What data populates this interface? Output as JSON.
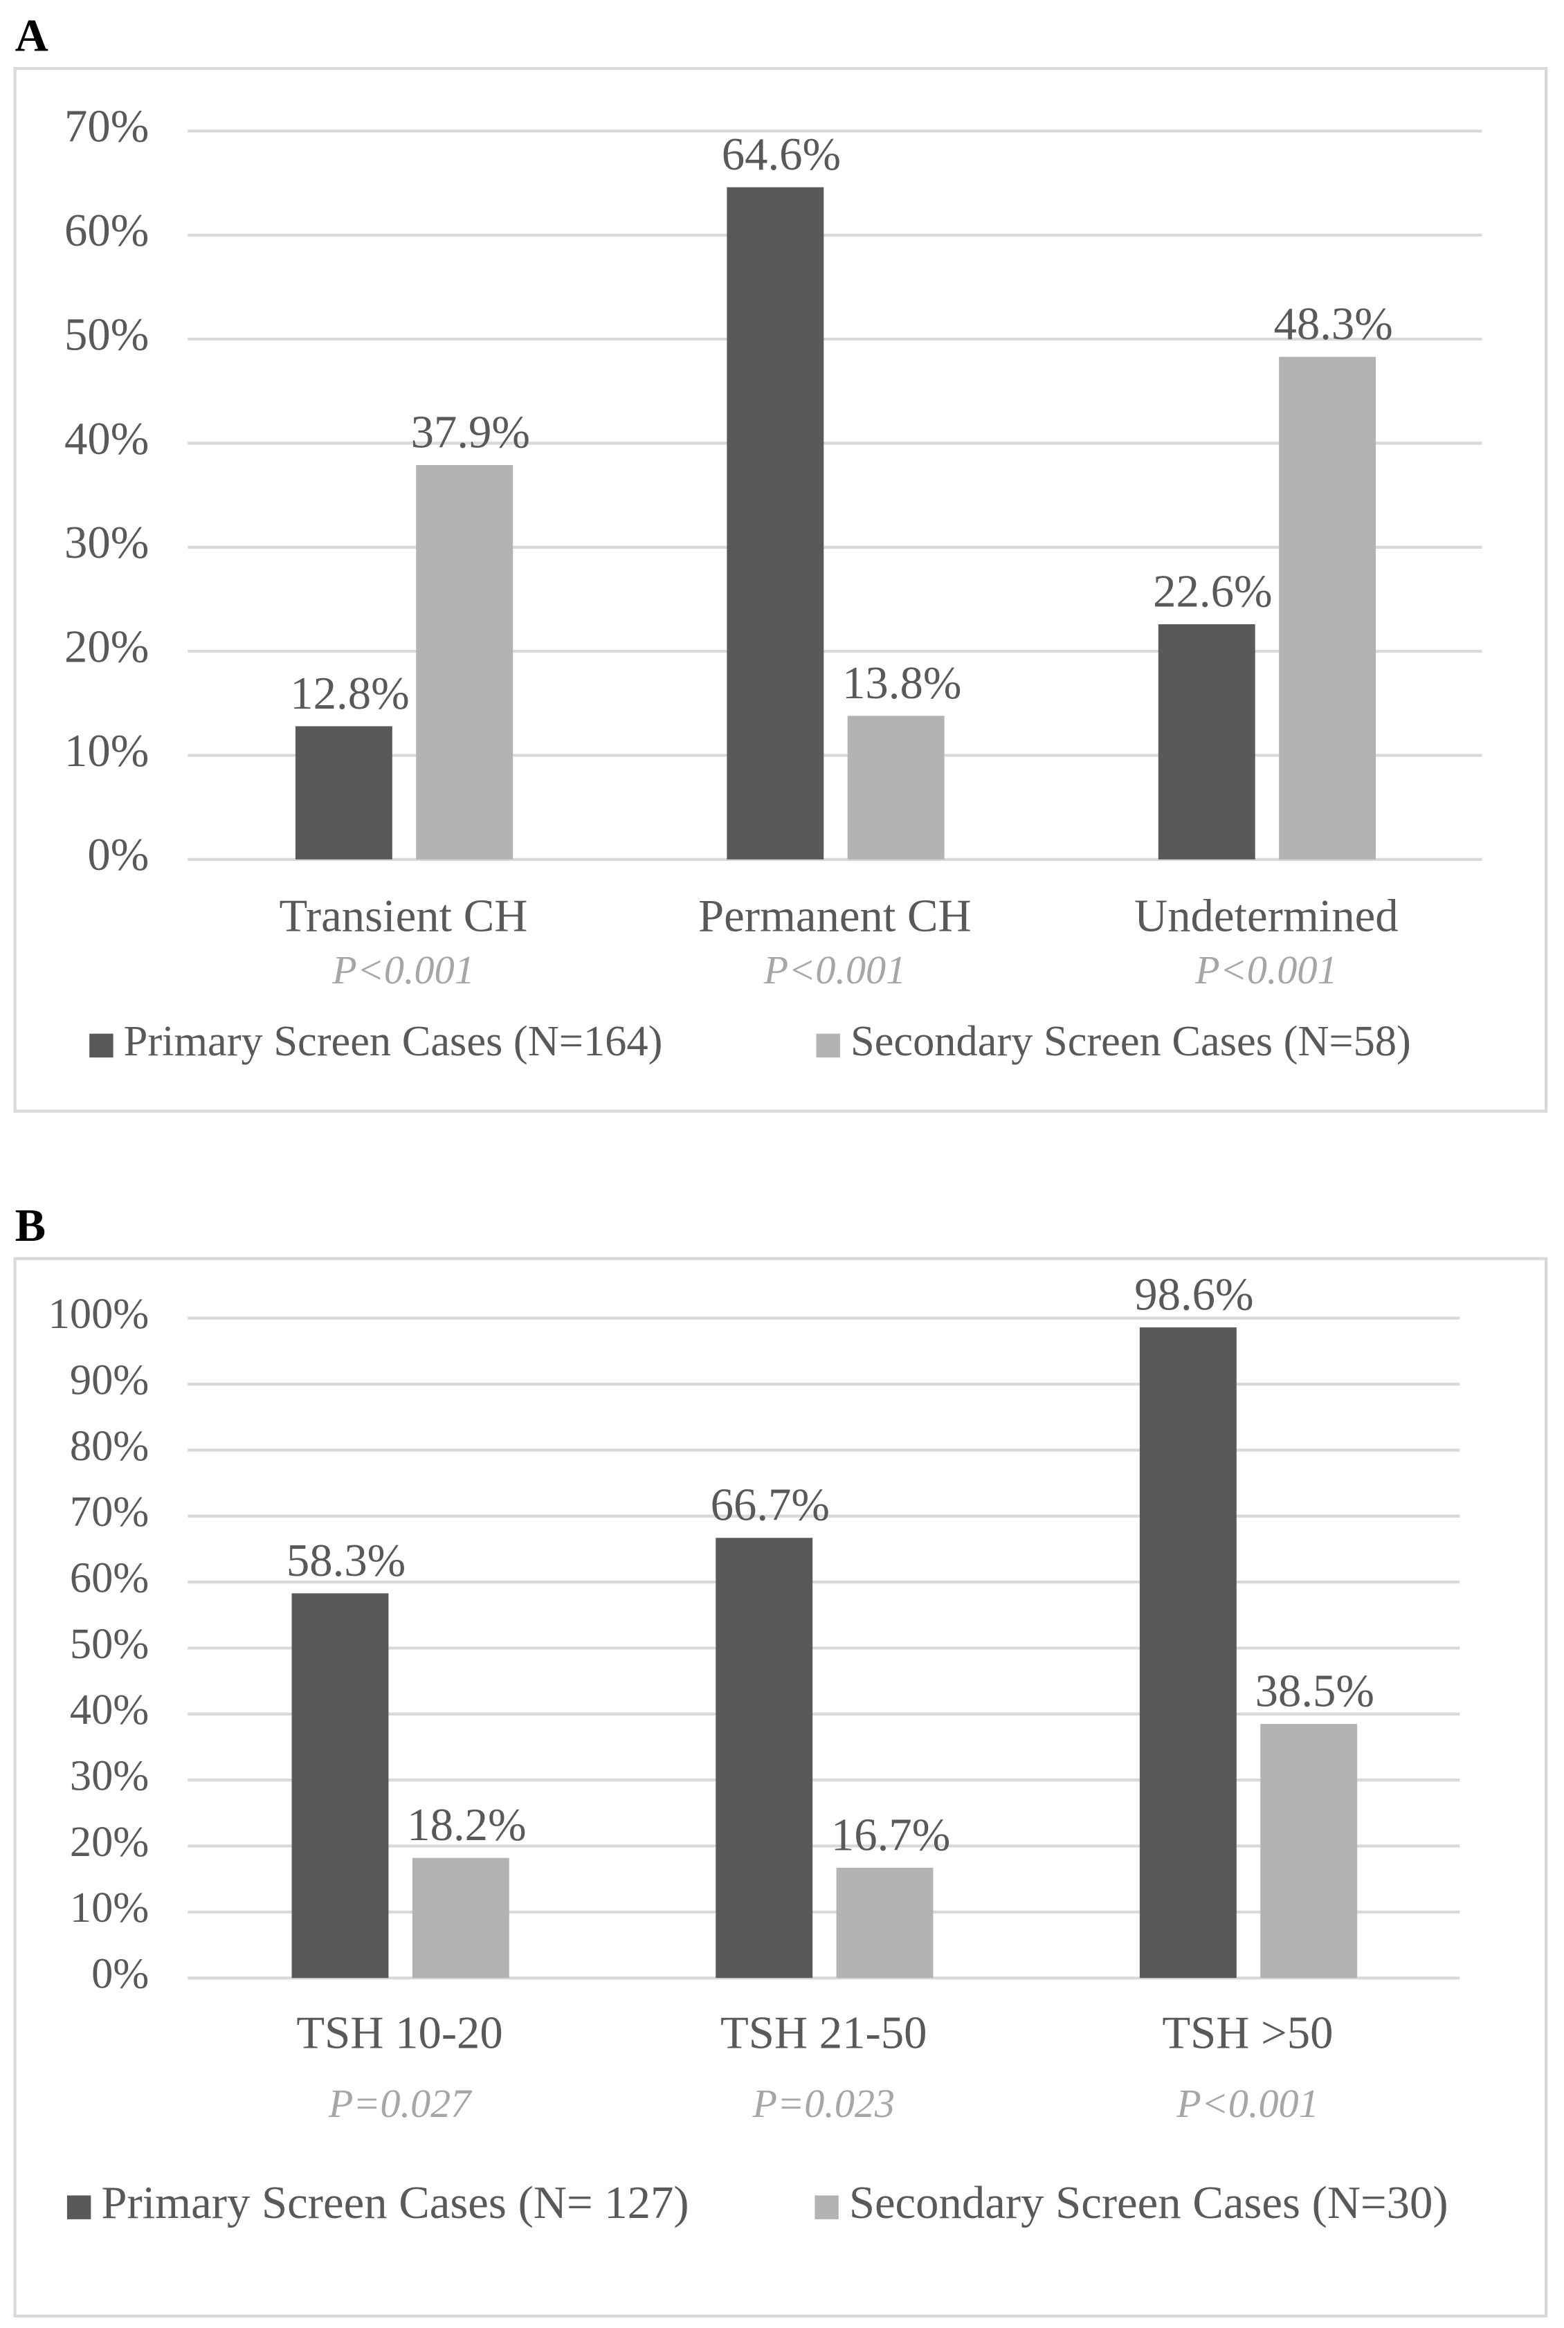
{
  "chart_data": [
    {
      "type": "bar",
      "panel": "A",
      "categories": [
        "Transient CH",
        "Permanent CH",
        "Undetermined"
      ],
      "annotations": [
        "P<0.001",
        "P<0.001",
        "P<0.001"
      ],
      "series": [
        {
          "name": "Primary Screen Cases (N=164)",
          "color": "#595959",
          "values": [
            12.8,
            64.6,
            22.6
          ],
          "value_labels": [
            "12.8%",
            "64.6%",
            "22.6%"
          ]
        },
        {
          "name": "Secondary Screen Cases (N=58)",
          "color": "#b3b3b3",
          "values": [
            37.9,
            13.8,
            48.3
          ],
          "value_labels": [
            "37.9%",
            "13.8%",
            "48.3%"
          ]
        }
      ],
      "ylim": [
        0,
        70
      ],
      "yticks": [
        {
          "value": 0,
          "label": "0%"
        },
        {
          "value": 10,
          "label": "10%"
        },
        {
          "value": 20,
          "label": "20%"
        },
        {
          "value": 30,
          "label": "30%"
        },
        {
          "value": 40,
          "label": "40%"
        },
        {
          "value": 50,
          "label": "50%"
        },
        {
          "value": 60,
          "label": "60%"
        },
        {
          "value": 70,
          "label": "70%"
        }
      ],
      "grid": true,
      "legend": "bottom"
    },
    {
      "type": "bar",
      "panel": "B",
      "categories": [
        "TSH 10-20",
        "TSH 21-50",
        "TSH >50"
      ],
      "annotations": [
        "P=0.027",
        "P=0.023",
        "P<0.001"
      ],
      "series": [
        {
          "name": "Primary Screen Cases (N= 127)",
          "color": "#595959",
          "values": [
            58.3,
            66.7,
            98.6
          ],
          "value_labels": [
            "58.3%",
            "66.7%",
            "98.6%"
          ]
        },
        {
          "name": "Secondary Screen Cases (N=30)",
          "color": "#b3b3b3",
          "values": [
            18.2,
            16.7,
            38.5
          ],
          "value_labels": [
            "18.2%",
            "16.7%",
            "38.5%"
          ]
        }
      ],
      "ylim": [
        0,
        100
      ],
      "yticks": [
        {
          "value": 0,
          "label": "0%"
        },
        {
          "value": 10,
          "label": "10%"
        },
        {
          "value": 20,
          "label": "20%"
        },
        {
          "value": 30,
          "label": "30%"
        },
        {
          "value": 40,
          "label": "40%"
        },
        {
          "value": 50,
          "label": "50%"
        },
        {
          "value": 60,
          "label": "60%"
        },
        {
          "value": 70,
          "label": "70%"
        },
        {
          "value": 80,
          "label": "80%"
        },
        {
          "value": 90,
          "label": "90%"
        },
        {
          "value": 100,
          "label": "100%"
        }
      ],
      "grid": true,
      "legend": "bottom"
    }
  ]
}
